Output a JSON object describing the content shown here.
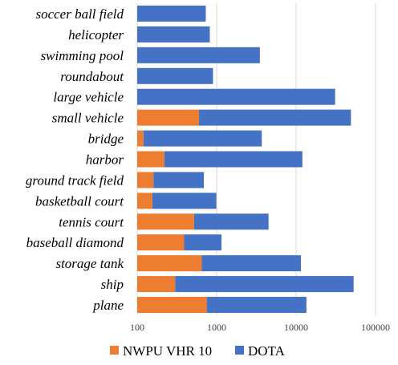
{
  "chart_data": {
    "type": "bar",
    "orientation": "horizontal",
    "stacked": true,
    "x_scale": "log",
    "xlim": [
      100,
      100000
    ],
    "x_ticks": [
      "100",
      "1000",
      "10000",
      "100000"
    ],
    "grid": true,
    "legend_position": "bottom",
    "categories": [
      "soccer ball field",
      "helicopter",
      "swimming pool",
      "roundabout",
      "large vehicle",
      "small vehicle",
      "bridge",
      "harbor",
      "ground track field",
      "basketball court",
      "tennis court",
      "baseball diamond",
      "storage tank",
      "ship",
      "plane"
    ],
    "series": [
      {
        "name": "NWPU VHR 10",
        "color": "#ED7D31",
        "values": [
          0,
          0,
          0,
          0,
          0,
          600,
          120,
          220,
          160,
          155,
          520,
          390,
          650,
          300,
          750
        ]
      },
      {
        "name": "DOTA",
        "color": "#4472C4",
        "values": [
          730,
          820,
          3500,
          900,
          31000,
          49000,
          3700,
          12000,
          690,
          990,
          4500,
          1150,
          11500,
          53000,
          13500
        ]
      }
    ]
  }
}
